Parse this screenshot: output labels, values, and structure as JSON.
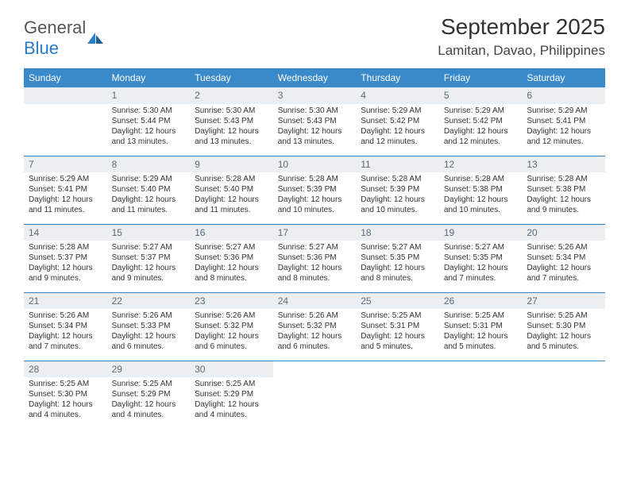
{
  "brand": {
    "text1": "General",
    "text2": "Blue"
  },
  "title": "September 2025",
  "location": "Lamitan, Davao, Philippines",
  "colors": {
    "header_bg": "#3a89c9",
    "header_text": "#ffffff",
    "daybar_bg": "#eceff1",
    "daybar_text": "#5c6b78",
    "rule": "#3a89c9",
    "body_text": "#333333",
    "page_bg": "#ffffff"
  },
  "fonts": {
    "title_size": 28,
    "location_size": 17,
    "dayhdr_size": 12,
    "body_size": 10
  },
  "day_headers": [
    "Sunday",
    "Monday",
    "Tuesday",
    "Wednesday",
    "Thursday",
    "Friday",
    "Saturday"
  ],
  "weeks": [
    [
      null,
      {
        "n": "1",
        "sr": "5:30 AM",
        "ss": "5:44 PM",
        "dl": "12 hours and 13 minutes."
      },
      {
        "n": "2",
        "sr": "5:30 AM",
        "ss": "5:43 PM",
        "dl": "12 hours and 13 minutes."
      },
      {
        "n": "3",
        "sr": "5:30 AM",
        "ss": "5:43 PM",
        "dl": "12 hours and 13 minutes."
      },
      {
        "n": "4",
        "sr": "5:29 AM",
        "ss": "5:42 PM",
        "dl": "12 hours and 12 minutes."
      },
      {
        "n": "5",
        "sr": "5:29 AM",
        "ss": "5:42 PM",
        "dl": "12 hours and 12 minutes."
      },
      {
        "n": "6",
        "sr": "5:29 AM",
        "ss": "5:41 PM",
        "dl": "12 hours and 12 minutes."
      }
    ],
    [
      {
        "n": "7",
        "sr": "5:29 AM",
        "ss": "5:41 PM",
        "dl": "12 hours and 11 minutes."
      },
      {
        "n": "8",
        "sr": "5:29 AM",
        "ss": "5:40 PM",
        "dl": "12 hours and 11 minutes."
      },
      {
        "n": "9",
        "sr": "5:28 AM",
        "ss": "5:40 PM",
        "dl": "12 hours and 11 minutes."
      },
      {
        "n": "10",
        "sr": "5:28 AM",
        "ss": "5:39 PM",
        "dl": "12 hours and 10 minutes."
      },
      {
        "n": "11",
        "sr": "5:28 AM",
        "ss": "5:39 PM",
        "dl": "12 hours and 10 minutes."
      },
      {
        "n": "12",
        "sr": "5:28 AM",
        "ss": "5:38 PM",
        "dl": "12 hours and 10 minutes."
      },
      {
        "n": "13",
        "sr": "5:28 AM",
        "ss": "5:38 PM",
        "dl": "12 hours and 9 minutes."
      }
    ],
    [
      {
        "n": "14",
        "sr": "5:28 AM",
        "ss": "5:37 PM",
        "dl": "12 hours and 9 minutes."
      },
      {
        "n": "15",
        "sr": "5:27 AM",
        "ss": "5:37 PM",
        "dl": "12 hours and 9 minutes."
      },
      {
        "n": "16",
        "sr": "5:27 AM",
        "ss": "5:36 PM",
        "dl": "12 hours and 8 minutes."
      },
      {
        "n": "17",
        "sr": "5:27 AM",
        "ss": "5:36 PM",
        "dl": "12 hours and 8 minutes."
      },
      {
        "n": "18",
        "sr": "5:27 AM",
        "ss": "5:35 PM",
        "dl": "12 hours and 8 minutes."
      },
      {
        "n": "19",
        "sr": "5:27 AM",
        "ss": "5:35 PM",
        "dl": "12 hours and 7 minutes."
      },
      {
        "n": "20",
        "sr": "5:26 AM",
        "ss": "5:34 PM",
        "dl": "12 hours and 7 minutes."
      }
    ],
    [
      {
        "n": "21",
        "sr": "5:26 AM",
        "ss": "5:34 PM",
        "dl": "12 hours and 7 minutes."
      },
      {
        "n": "22",
        "sr": "5:26 AM",
        "ss": "5:33 PM",
        "dl": "12 hours and 6 minutes."
      },
      {
        "n": "23",
        "sr": "5:26 AM",
        "ss": "5:32 PM",
        "dl": "12 hours and 6 minutes."
      },
      {
        "n": "24",
        "sr": "5:26 AM",
        "ss": "5:32 PM",
        "dl": "12 hours and 6 minutes."
      },
      {
        "n": "25",
        "sr": "5:25 AM",
        "ss": "5:31 PM",
        "dl": "12 hours and 5 minutes."
      },
      {
        "n": "26",
        "sr": "5:25 AM",
        "ss": "5:31 PM",
        "dl": "12 hours and 5 minutes."
      },
      {
        "n": "27",
        "sr": "5:25 AM",
        "ss": "5:30 PM",
        "dl": "12 hours and 5 minutes."
      }
    ],
    [
      {
        "n": "28",
        "sr": "5:25 AM",
        "ss": "5:30 PM",
        "dl": "12 hours and 4 minutes."
      },
      {
        "n": "29",
        "sr": "5:25 AM",
        "ss": "5:29 PM",
        "dl": "12 hours and 4 minutes."
      },
      {
        "n": "30",
        "sr": "5:25 AM",
        "ss": "5:29 PM",
        "dl": "12 hours and 4 minutes."
      },
      null,
      null,
      null,
      null
    ]
  ],
  "labels": {
    "sunrise": "Sunrise:",
    "sunset": "Sunset:",
    "daylight": "Daylight:"
  }
}
